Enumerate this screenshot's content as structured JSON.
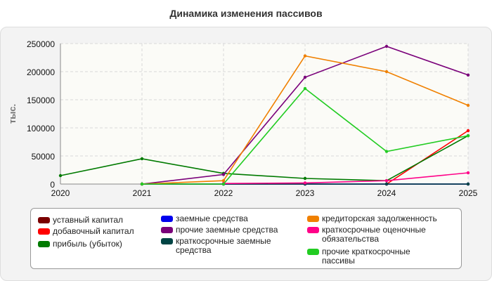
{
  "chart_data": {
    "type": "line",
    "title": "Динамика изменения пассивов",
    "ylabel": "тыс.",
    "xlabel": "",
    "x": [
      "2020",
      "2021",
      "2022",
      "2023",
      "2024",
      "2025"
    ],
    "ylim": [
      0,
      250000
    ],
    "yticks": [
      "0",
      "50000",
      "100000",
      "150000",
      "200000",
      "250000"
    ],
    "grid": true,
    "legend_position": "bottom",
    "series": [
      {
        "name": "уставный капитал",
        "color": "#7a0000",
        "values": [
          null,
          0,
          0,
          0,
          0,
          0
        ]
      },
      {
        "name": "добавочный капитал",
        "color": "#ff0000",
        "values": [
          null,
          null,
          null,
          null,
          0,
          95000
        ]
      },
      {
        "name": "прибыль (убыток)",
        "color": "#007a00",
        "values": [
          15000,
          45000,
          19000,
          10000,
          6000,
          86000
        ]
      },
      {
        "name": "заемные средства",
        "color": "#0000ee",
        "values": [
          null,
          0,
          0,
          0,
          0,
          0
        ]
      },
      {
        "name": "прочие заемные средства",
        "color": "#7a007a",
        "values": [
          null,
          0,
          17000,
          190000,
          245000,
          194000
        ]
      },
      {
        "name": "краткосрочные заемные средства",
        "color": "#004444",
        "values": [
          null,
          0,
          0,
          0,
          0,
          0
        ]
      },
      {
        "name": "кредиторская задолженность",
        "color": "#f08000",
        "values": [
          null,
          0,
          6000,
          228000,
          200000,
          140000
        ]
      },
      {
        "name": "краткосрочные оценочные обязательства",
        "color": "#ff0088",
        "values": [
          null,
          null,
          1000,
          2000,
          6000,
          20000
        ]
      },
      {
        "name": "прочие краткосрочные пассивы",
        "color": "#22cc22",
        "values": [
          null,
          0,
          0,
          170000,
          58000,
          86000
        ]
      }
    ]
  }
}
